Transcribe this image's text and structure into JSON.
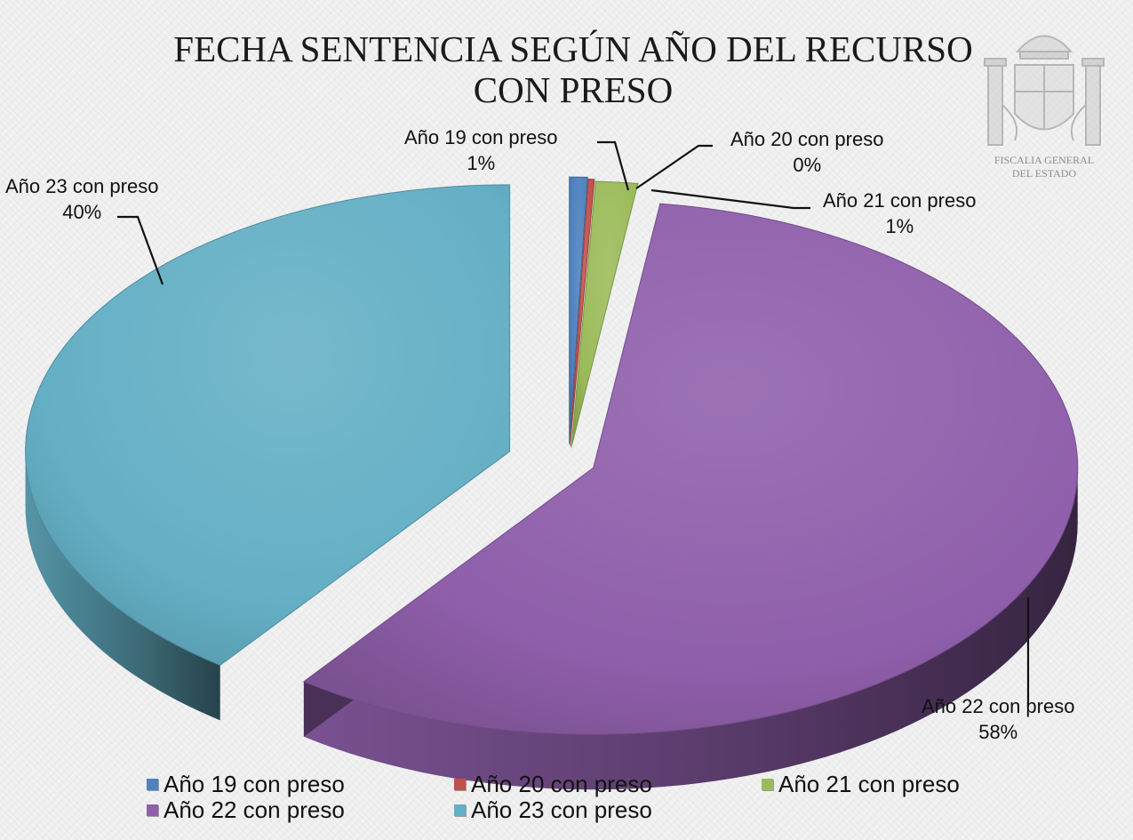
{
  "chart_data": {
    "type": "pie",
    "title": [
      "FECHA SENTENCIA SEGÚN AÑO DEL RECURSO",
      "CON PRESO"
    ],
    "slices": [
      {
        "name": "Año 19 con preso",
        "label_pct": "1%",
        "value": 0.6,
        "color": "#4f81bd"
      },
      {
        "name": "Año 20 con preso",
        "label_pct": "0%",
        "value": 0.2,
        "color": "#c0504d"
      },
      {
        "name": "Año 21 con preso",
        "label_pct": "1%",
        "value": 1.4,
        "color": "#9bbb59"
      },
      {
        "name": "Año 22 con preso",
        "label_pct": "58%",
        "value": 58,
        "color": "#8f5fab"
      },
      {
        "name": "Año 23 con preso",
        "label_pct": "40%",
        "value": 39.8,
        "color": "#64afc5"
      }
    ],
    "legend_position": "bottom",
    "style": "3d-exploded"
  },
  "emblem": {
    "caption": [
      "FISCALIA GENERAL",
      "DEL ESTADO"
    ]
  }
}
